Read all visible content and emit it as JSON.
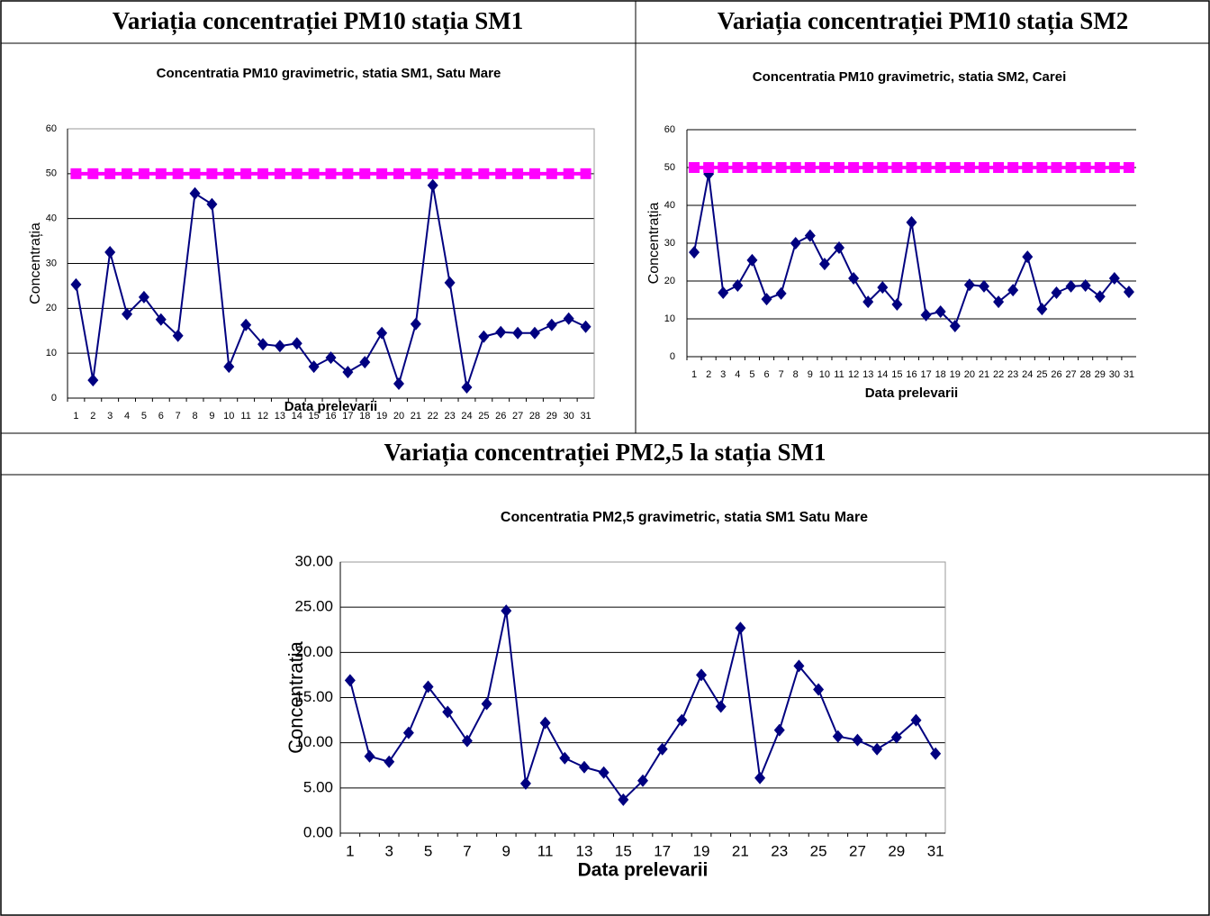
{
  "headers": [
    "Variația concentrației PM10 stația SM1",
    "Variația concentrației PM10 stația SM2",
    "Variația concentrației PM2,5 la stația SM1"
  ],
  "chart_data": [
    {
      "type": "line",
      "title": "Concentratia PM10 gravimetric, statia SM1, Satu Mare",
      "x_label": "Data prelevarii",
      "y_label": "Concentrația",
      "categories": [
        "1",
        "2",
        "3",
        "4",
        "5",
        "6",
        "7",
        "8",
        "9",
        "10",
        "11",
        "12",
        "13",
        "14",
        "15",
        "16",
        "17",
        "18",
        "19",
        "20",
        "21",
        "22",
        "23",
        "24",
        "25",
        "26",
        "27",
        "28",
        "29",
        "30",
        "31"
      ],
      "series": [
        {
          "color": "#000080",
          "marker": "diamond",
          "values": [
            25.3,
            4,
            32.5,
            18.7,
            22.5,
            17.5,
            13.9,
            45.6,
            43.2,
            7,
            16.3,
            12,
            11.6,
            12.2,
            7,
            9,
            5.8,
            8,
            14.5,
            3.2,
            16.5,
            47.4,
            25.7,
            2.4,
            13.7,
            14.7,
            14.5,
            14.5,
            16.3,
            17.7,
            15.9
          ]
        },
        {
          "color": "#ff00ff",
          "marker": "square",
          "values": [
            50,
            50,
            50,
            50,
            50,
            50,
            50,
            50,
            50,
            50,
            50,
            50,
            50,
            50,
            50,
            50,
            50,
            50,
            50,
            50,
            50,
            50,
            50,
            50,
            50,
            50,
            50,
            50,
            50,
            50,
            50
          ]
        }
      ],
      "ylim": [
        0,
        60
      ],
      "yticks": [
        0,
        10,
        20,
        30,
        40,
        50,
        60
      ],
      "grid": true
    },
    {
      "type": "line",
      "title": "Concentratia PM10 gravimetric, statia SM2, Carei",
      "x_label": "Data prelevarii",
      "y_label": "Concentrația",
      "categories": [
        "1",
        "2",
        "3",
        "4",
        "5",
        "6",
        "7",
        "8",
        "9",
        "10",
        "11",
        "12",
        "13",
        "14",
        "15",
        "16",
        "17",
        "18",
        "19",
        "20",
        "21",
        "22",
        "23",
        "24",
        "25",
        "26",
        "27",
        "28",
        "29",
        "30",
        "31"
      ],
      "series": [
        {
          "color": "#000080",
          "marker": "diamond",
          "values": [
            27.6,
            48.3,
            16.9,
            18.8,
            25.5,
            15.2,
            16.7,
            30,
            32,
            24.5,
            28.8,
            20.7,
            14.5,
            18.3,
            13.8,
            35.5,
            11,
            11.9,
            8.1,
            19,
            18.6,
            14.5,
            17.6,
            26.4,
            12.6,
            16.9,
            18.6,
            18.8,
            15.9,
            20.7,
            17.1
          ]
        },
        {
          "color": "#ff00ff",
          "marker": "square",
          "values": [
            50,
            50,
            50,
            50,
            50,
            50,
            50,
            50,
            50,
            50,
            50,
            50,
            50,
            50,
            50,
            50,
            50,
            50,
            50,
            50,
            50,
            50,
            50,
            50,
            50,
            50,
            50,
            50,
            50,
            50,
            50
          ]
        }
      ],
      "ylim": [
        0,
        60
      ],
      "yticks": [
        0,
        10,
        20,
        30,
        40,
        50,
        60
      ],
      "grid": true
    },
    {
      "type": "line",
      "title": "Concentratia PM2,5 gravimetric, statia SM1 Satu Mare",
      "x_label": "Data prelevarii",
      "y_label": "Concentratia",
      "categories": [
        "1",
        null,
        "3",
        null,
        "5",
        null,
        "7",
        null,
        "9",
        null,
        "11",
        null,
        "13",
        null,
        "15",
        null,
        "17",
        null,
        "19",
        null,
        "21",
        null,
        "23",
        null,
        "25",
        null,
        "27",
        null,
        "29",
        null,
        "31"
      ],
      "series": [
        {
          "color": "#000080",
          "marker": "diamond",
          "values": [
            16.9,
            8.5,
            7.9,
            11.1,
            16.2,
            13.4,
            10.2,
            14.3,
            24.6,
            5.5,
            12.2,
            8.3,
            7.3,
            6.7,
            3.7,
            5.8,
            9.3,
            12.5,
            17.5,
            14,
            22.7,
            6.1,
            11.4,
            18.5,
            15.9,
            10.7,
            10.3,
            9.3,
            10.6,
            12.5,
            8.8
          ]
        }
      ],
      "ylim": [
        0,
        30
      ],
      "yticks": [
        {
          "value": 0,
          "label": "0.00"
        },
        {
          "value": 5,
          "label": "5.00"
        },
        {
          "value": 10,
          "label": "10.00"
        },
        {
          "value": 15,
          "label": "15.00"
        },
        {
          "value": 20,
          "label": "20.00"
        },
        {
          "value": 25,
          "label": "25.00"
        },
        {
          "value": 30,
          "label": "30.00"
        }
      ],
      "grid": true
    }
  ]
}
